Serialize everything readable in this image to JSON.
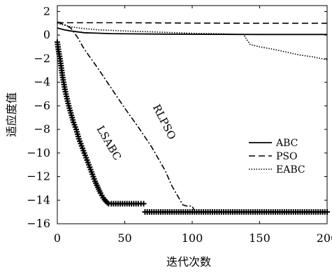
{
  "chart_data": {
    "type": "line",
    "xlabel": "迭代次数",
    "ylabel": "适应度值",
    "xlim": [
      0,
      200
    ],
    "ylim": [
      -16,
      2.5
    ],
    "xticks": [
      0,
      50,
      100,
      150,
      200
    ],
    "yticks": [
      2,
      0,
      -2,
      -4,
      -6,
      -8,
      -10,
      -12,
      -14,
      -16
    ],
    "legend_position": "right",
    "series": [
      {
        "name": "ABC",
        "style": "solid",
        "x": [
          0,
          5,
          10,
          20,
          40,
          60,
          80,
          100,
          150,
          200
        ],
        "y": [
          0.6,
          0.45,
          0.35,
          0.2,
          0.12,
          0.1,
          0.08,
          0.07,
          0.05,
          0.05
        ]
      },
      {
        "name": "PSO",
        "style": "dashed",
        "x": [
          0,
          3,
          10,
          30,
          50,
          100,
          150,
          200
        ],
        "y": [
          1.1,
          1.05,
          1.05,
          1.05,
          1.05,
          1.02,
          1.0,
          1.0
        ]
      },
      {
        "name": "EABC",
        "style": "dotted",
        "x": [
          0,
          5,
          10,
          20,
          30,
          50,
          75,
          100,
          125,
          138,
          140,
          143,
          150,
          160,
          170,
          180,
          190,
          200
        ],
        "y": [
          1.0,
          0.85,
          0.7,
          0.55,
          0.45,
          0.35,
          0.25,
          0.15,
          0.1,
          0.05,
          -0.3,
          -0.8,
          -1.0,
          -1.2,
          -1.45,
          -1.7,
          -1.85,
          -2.1
        ]
      },
      {
        "name": "RLPSO",
        "style": "dashdot",
        "x": [
          0,
          5,
          10,
          15,
          20,
          30,
          40,
          50,
          60,
          70,
          80,
          85,
          90,
          93,
          96,
          100,
          102
        ],
        "y": [
          1.1,
          0.9,
          0.6,
          -0.2,
          -1.2,
          -2.8,
          -4.5,
          -6.2,
          -7.8,
          -9.5,
          -11.5,
          -12.8,
          -13.8,
          -14.4,
          -14.5,
          -14.5,
          -15.0
        ]
      },
      {
        "name": "LSABC",
        "style": "plus-marker",
        "x": [
          0,
          1,
          2,
          3,
          4,
          5,
          6,
          8,
          10,
          12,
          14,
          16,
          18,
          20,
          22,
          24,
          26,
          28,
          30,
          32,
          34,
          36,
          38,
          40,
          45,
          50,
          55,
          60,
          64
        ],
        "y": [
          -0.6,
          -1.4,
          -2.0,
          -2.8,
          -3.6,
          -4.2,
          -4.8,
          -5.8,
          -6.6,
          -7.4,
          -8.0,
          -8.8,
          -9.4,
          -10.0,
          -10.6,
          -11.2,
          -11.8,
          -12.4,
          -12.9,
          -13.4,
          -13.8,
          -14.1,
          -14.3,
          -14.3,
          -14.3,
          -14.3,
          -14.3,
          -14.3,
          -14.3
        ]
      },
      {
        "name": "",
        "style": "plus-marker",
        "x": [
          65,
          70,
          75,
          80,
          85,
          90,
          95,
          100,
          105,
          110,
          115,
          120,
          125,
          130,
          135,
          140,
          145,
          150,
          155,
          160,
          165,
          170,
          175,
          180,
          185,
          190,
          195,
          200
        ],
        "y": [
          -15,
          -15,
          -15,
          -15,
          -15,
          -15,
          -15,
          -15,
          -15,
          -15,
          -15,
          -15,
          -15,
          -15,
          -15,
          -15,
          -15,
          -15,
          -15,
          -15,
          -15,
          -15,
          -15,
          -15,
          -15,
          -15,
          -15,
          -15
        ]
      }
    ],
    "annotations": [
      {
        "text": "RLPSO",
        "x": 77,
        "y": -7.5,
        "rotate": 63
      },
      {
        "text": "LSABC",
        "x": 36,
        "y": -9.3,
        "rotate": 60
      }
    ]
  }
}
